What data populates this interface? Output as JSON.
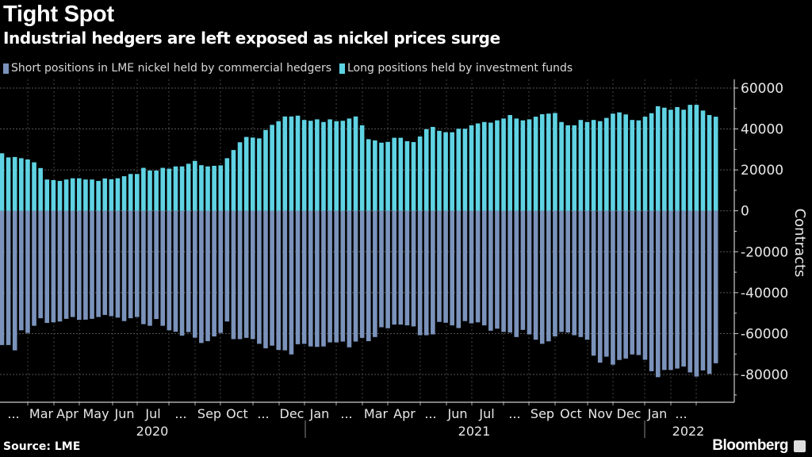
{
  "title": "Tight Spot",
  "subtitle": "Industrial hedgers are left exposed as nickel prices surge",
  "source": "Source: LME",
  "brand": "Bloomberg",
  "colors": {
    "short": "#7b93bb",
    "long": "#5fd3e3",
    "background": "#000000"
  },
  "chart_data": {
    "type": "bar",
    "stacked": "diverging",
    "ylabel": "Contracts",
    "ylim": [
      -93000,
      64000
    ],
    "yticks": [
      60000,
      40000,
      20000,
      0,
      -20000,
      -40000,
      -60000,
      -80000
    ],
    "ytick_labels": [
      "60000",
      "40000",
      "20000",
      "0",
      "-20000",
      "-40000",
      "-60000",
      "-80000"
    ],
    "grid": true,
    "legend_position": "top-left",
    "xtick_labels": [
      "...",
      "Mar",
      "Apr",
      "May",
      "Jun",
      "Jul",
      "...",
      "Sep",
      "Oct",
      "...",
      "Dec",
      "Jan",
      "...",
      "Mar",
      "Apr",
      "...",
      "Jun",
      "Jul",
      "...",
      "Sep",
      "Oct",
      "Nov",
      "Dec",
      "Jan",
      "..."
    ],
    "year_labels": [
      "2020",
      "2021",
      "2022"
    ],
    "series": [
      {
        "name": "Short positions in LME nickel held by commercial hedgers",
        "values": [
          -65600,
          -65600,
          -68200,
          -58400,
          -59700,
          -56200,
          -52500,
          -54800,
          -54500,
          -54100,
          -52800,
          -51900,
          -53300,
          -53200,
          -52800,
          -51900,
          -50900,
          -51500,
          -52200,
          -53900,
          -52500,
          -51900,
          -55400,
          -56200,
          -52900,
          -56200,
          -58400,
          -59100,
          -61000,
          -59300,
          -62000,
          -64600,
          -63700,
          -61400,
          -59700,
          -54100,
          -62700,
          -62700,
          -62100,
          -62700,
          -65000,
          -67200,
          -65900,
          -68000,
          -68200,
          -70200,
          -65200,
          -65000,
          -66300,
          -66500,
          -66300,
          -64300,
          -64300,
          -63900,
          -66700,
          -63900,
          -62100,
          -63700,
          -61700,
          -56900,
          -57400,
          -55600,
          -55600,
          -56000,
          -56500,
          -60800,
          -60800,
          -60400,
          -54300,
          -54700,
          -56000,
          -57300,
          -53900,
          -55000,
          -54500,
          -56000,
          -58600,
          -57600,
          -59200,
          -59500,
          -61700,
          -58200,
          -60400,
          -63000,
          -65000,
          -63800,
          -61400,
          -59200,
          -59500,
          -60800,
          -61700,
          -63000,
          -70800,
          -74200,
          -71300,
          -75200,
          -72900,
          -72200,
          -70200,
          -70500,
          -72800,
          -78400,
          -81300,
          -77800,
          -77800,
          -77100,
          -76100,
          -79000,
          -81000,
          -78000,
          -79700,
          -74500
        ]
      },
      {
        "name": "Long positions held by investment funds",
        "values": [
          28100,
          26100,
          26300,
          25700,
          25100,
          23700,
          20900,
          15300,
          15000,
          14600,
          15300,
          15900,
          15900,
          15300,
          15300,
          14600,
          15800,
          15400,
          15900,
          16900,
          18000,
          18000,
          21000,
          19700,
          19700,
          21000,
          20600,
          21700,
          21700,
          23000,
          24400,
          22300,
          21700,
          22000,
          22200,
          25700,
          29700,
          33500,
          36100,
          35800,
          35400,
          39500,
          42000,
          43800,
          46100,
          46100,
          46500,
          44400,
          44000,
          44700,
          43400,
          44700,
          43800,
          44000,
          45100,
          46100,
          41800,
          35000,
          34400,
          33300,
          33700,
          35700,
          35700,
          34000,
          33600,
          36300,
          39900,
          41000,
          39100,
          38400,
          38400,
          40100,
          40100,
          41800,
          42700,
          43400,
          43100,
          44200,
          45100,
          46800,
          45100,
          44200,
          44700,
          46000,
          47200,
          47500,
          47800,
          43400,
          41800,
          41800,
          44400,
          43400,
          44400,
          43800,
          45400,
          47500,
          48100,
          47100,
          44400,
          44200,
          46000,
          47700,
          51100,
          50400,
          49400,
          50700,
          49400,
          51800,
          51800,
          49000,
          46800,
          46000
        ]
      }
    ]
  }
}
